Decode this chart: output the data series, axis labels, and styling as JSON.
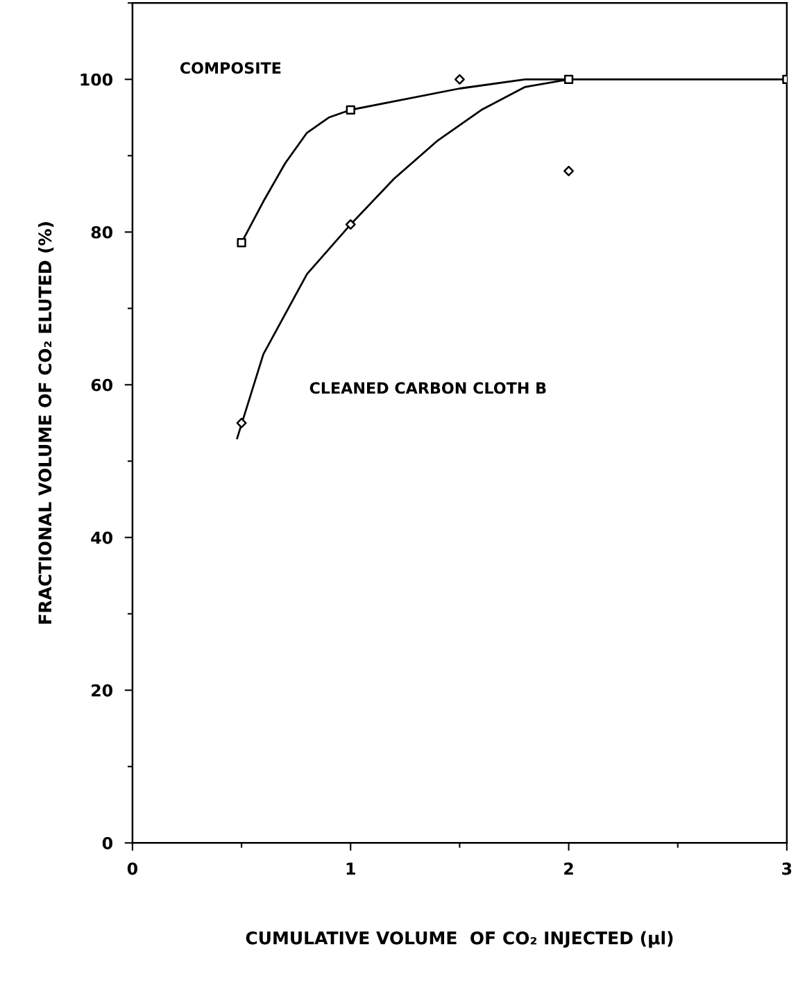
{
  "chart_data": {
    "type": "scatter",
    "xlabel": "CUMULATIVE VOLUME  OF CO₂ INJECTED (µl)",
    "ylabel": "FRACTIONAL VOLUME OF CO₂ ELUTED (%)",
    "xlim": [
      0,
      3
    ],
    "ylim": [
      0,
      110
    ],
    "xticks": [
      0,
      1,
      2,
      3
    ],
    "yticks": [
      0,
      20,
      40,
      60,
      80,
      100
    ],
    "grid": false,
    "legend": false,
    "series": [
      {
        "type": "line",
        "color": "#000000",
        "marker": "none",
        "x": [
          0.5,
          0.6,
          0.7,
          0.8,
          0.9,
          1.0,
          1.5,
          1.8,
          2.0,
          3.0
        ],
        "values": [
          78.6,
          84,
          89,
          93,
          95,
          96,
          98.8,
          100,
          100,
          100
        ]
      },
      {
        "type": "line",
        "color": "#000000",
        "marker": "none",
        "x": [
          0.48,
          0.6,
          0.8,
          1.0,
          1.2,
          1.4,
          1.6,
          1.8,
          2.0
        ],
        "values": [
          53,
          64,
          74.5,
          81,
          87,
          92,
          96,
          99,
          100
        ]
      },
      {
        "color": "#000000",
        "marker": "square",
        "x": [
          0.5,
          1.0,
          2.0,
          3.0
        ],
        "values": [
          78.6,
          96,
          100,
          100
        ]
      },
      {
        "color": "#000000",
        "marker": "diamond",
        "x": [
          0.5,
          1.0,
          1.5,
          2.0
        ],
        "values": [
          55,
          81,
          100,
          88
        ]
      }
    ],
    "annotations": [
      "COMPOSITE",
      "CLEANED CARBON CLOTH B"
    ]
  }
}
